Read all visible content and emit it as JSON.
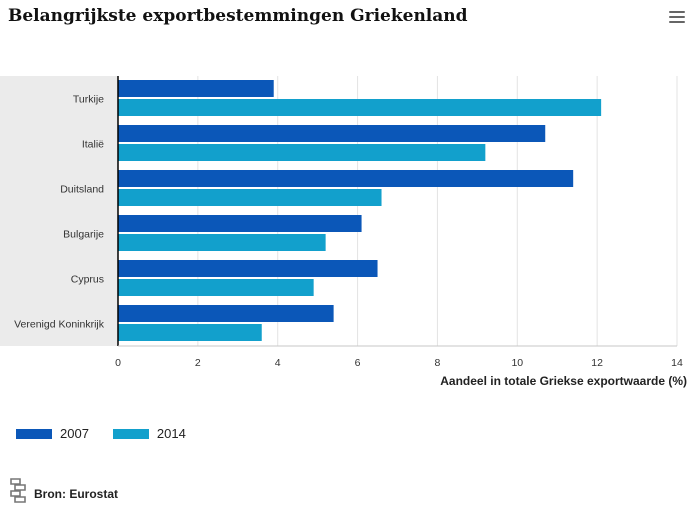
{
  "header": {
    "title": "Belangrijkste exportbestemmingen Griekenland"
  },
  "legend": {
    "items": [
      {
        "label": "2007",
        "color": "#0b57b8"
      },
      {
        "label": "2014",
        "color": "#12a0cc"
      }
    ]
  },
  "source": {
    "text": "Bron: Eurostat",
    "icon": "cbs-logo-icon"
  },
  "chart_data": {
    "type": "bar",
    "orientation": "horizontal",
    "title": "Belangrijkste exportbestemmingen Griekenland",
    "xlabel": "Aandeel in totale Griekse exportwaarde (%)",
    "ylabel": "",
    "categories": [
      "Turkije",
      "Italië",
      "Duitsland",
      "Bulgarije",
      "Cyprus",
      "Verenigd Koninkrijk"
    ],
    "series": [
      {
        "name": "2007",
        "color": "#0b57b8",
        "values": [
          3.9,
          10.7,
          11.4,
          6.1,
          6.5,
          5.4
        ]
      },
      {
        "name": "2014",
        "color": "#12a0cc",
        "values": [
          12.1,
          9.2,
          6.6,
          5.2,
          4.9,
          3.6
        ]
      }
    ],
    "xlim": [
      0,
      14
    ],
    "xticks": [
      0,
      2,
      4,
      6,
      8,
      10,
      12,
      14
    ],
    "grid": true,
    "legend_position": "bottom-left"
  }
}
